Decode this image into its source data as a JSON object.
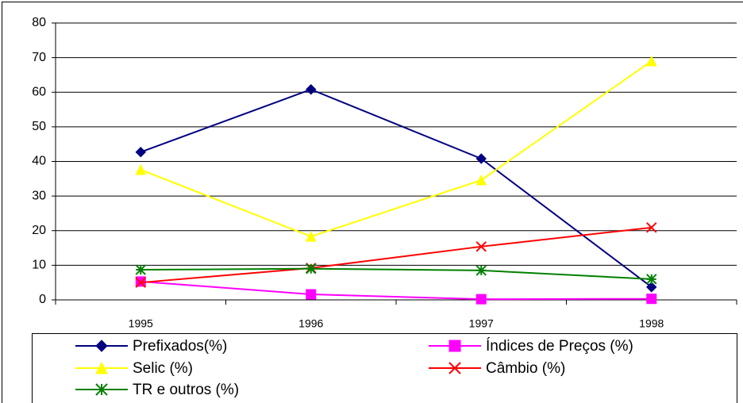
{
  "chart_data": {
    "type": "line",
    "categories": [
      "1995",
      "1996",
      "1997",
      "1998"
    ],
    "series": [
      {
        "name": "Prefixados(%)",
        "color": "#000080",
        "marker": "diamond",
        "values": [
          42.7,
          60.8,
          40.8,
          3.7
        ]
      },
      {
        "name": "Índices de Preços (%)",
        "color": "#ff00ff",
        "marker": "square",
        "values": [
          5.3,
          1.6,
          0.2,
          0.3
        ]
      },
      {
        "name": "Selic (%)",
        "color": "#ffff00",
        "marker": "triangle",
        "values": [
          37.6,
          18.3,
          34.6,
          69
        ]
      },
      {
        "name": "Câmbio (%)",
        "color": "#ff0000",
        "marker": "x",
        "values": [
          5.0,
          9.2,
          15.4,
          20.9
        ]
      },
      {
        "name": "TR e outros (%)",
        "color": "#008000",
        "marker": "star",
        "values": [
          8.7,
          9.0,
          8.5,
          6.0
        ]
      }
    ],
    "ylim": [
      0,
      80
    ],
    "yticks": [
      0,
      10,
      20,
      30,
      40,
      50,
      60,
      70,
      80
    ],
    "grid": true
  }
}
